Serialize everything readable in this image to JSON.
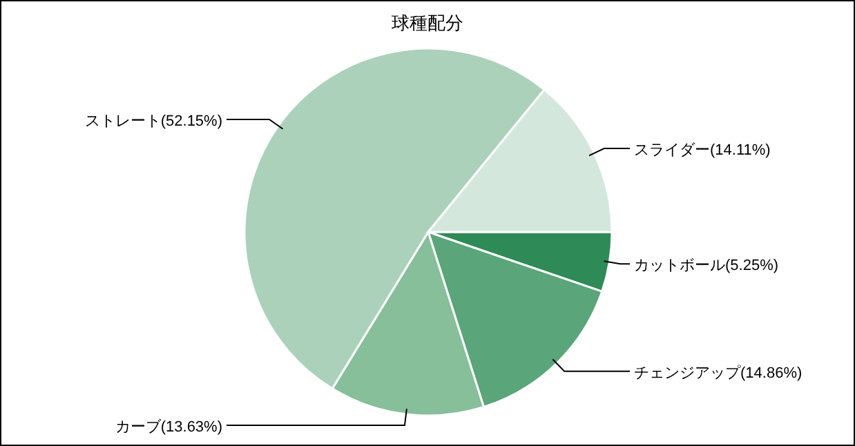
{
  "chart_data": {
    "type": "pie",
    "title": "球種配分",
    "categories": [
      "カットボール",
      "チェンジアップ",
      "カーブ",
      "ストレート",
      "スライダー"
    ],
    "values": [
      5.25,
      14.86,
      13.63,
      52.15,
      14.11
    ],
    "colors": [
      "#2e8b57",
      "#5aa57a",
      "#86bf9a",
      "#abd1bb",
      "#d4e7dc"
    ],
    "value_labels": [
      "(5.25%)",
      "(14.86%)",
      "(13.63%)",
      "(52.15%)",
      "(14.11%)"
    ]
  }
}
